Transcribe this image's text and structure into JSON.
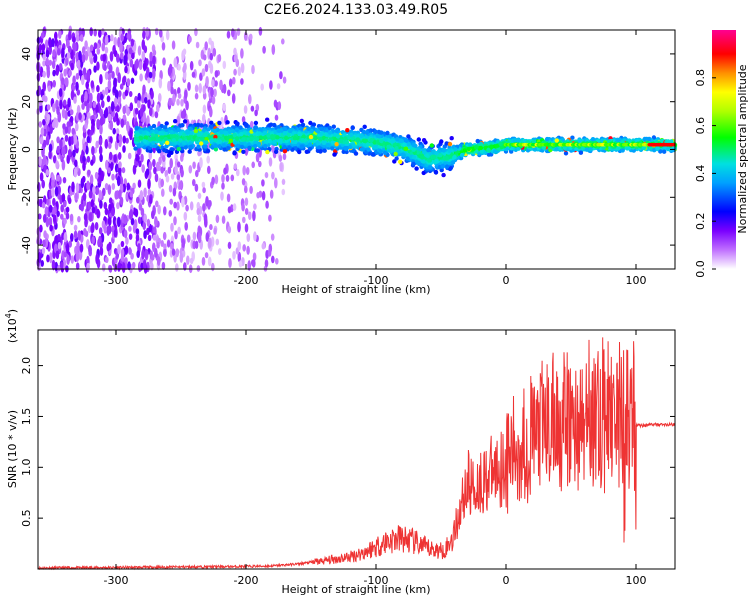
{
  "figure": {
    "title": "C2E6.2024.133.03.49.R05"
  },
  "chart_data": [
    {
      "type": "heatmap",
      "xlabel": "Height of straight line (km)",
      "ylabel": "Frequency (Hz)",
      "xlim": [
        -360,
        130
      ],
      "ylim": [
        -50,
        50
      ],
      "xticks": [
        -300,
        -200,
        -100,
        0,
        100
      ],
      "yticks": [
        -40,
        -20,
        0,
        20,
        40
      ],
      "colorbar": {
        "label": "Normalized spectral amplitude",
        "range": [
          0,
          1
        ],
        "ticks": [
          "0.0",
          "0.2",
          "0.4",
          "0.6",
          "0.8"
        ],
        "tick_values": [
          0.0,
          0.2,
          0.4,
          0.6,
          0.8
        ],
        "colormap": [
          "#ffffff",
          "#7a00ff",
          "#0000ff",
          "#00c8ff",
          "#00ff00",
          "#ffff00",
          "#ff8000",
          "#ff0000",
          "#ff0090"
        ]
      },
      "ridge": {
        "description_points_x": [
          -280,
          -250,
          -200,
          -150,
          -120,
          -100,
          -80,
          -60,
          -45,
          -30,
          -10,
          0,
          50,
          100,
          130
        ],
        "description_points_y": [
          5,
          5,
          5,
          5,
          4,
          3,
          1,
          -4,
          -3,
          0,
          1,
          2,
          2,
          2,
          2
        ]
      }
    },
    {
      "type": "line",
      "xlabel": "Height of straight line (km)",
      "ylabel": "SNR (10 * v/v)",
      "y_scale_label": "(x10",
      "y_scale_exp": "4",
      "y_scale_close": ")",
      "xlim": [
        -360,
        130
      ],
      "ylim": [
        0,
        2.35
      ],
      "xticks": [
        -300,
        -200,
        -100,
        0,
        100
      ],
      "yticks": [
        "0.5",
        "1.0",
        "1.5",
        "2.0"
      ],
      "ytick_values": [
        0.5,
        1.0,
        1.5,
        2.0
      ],
      "color": "#ee3333",
      "series": [
        {
          "x": [
            -360,
            -300,
            -250,
            -200,
            -180,
            -160,
            -140,
            -120,
            -110,
            -100,
            -90,
            -80,
            -70,
            -60,
            -50,
            -45,
            -40,
            -35,
            -30,
            -25,
            -20,
            -15,
            -10,
            -5,
            0,
            10,
            20,
            30,
            40,
            50,
            60,
            70,
            80,
            90,
            95,
            100,
            105,
            110,
            120,
            130
          ],
          "y": [
            0.01,
            0.015,
            0.02,
            0.025,
            0.03,
            0.05,
            0.08,
            0.12,
            0.16,
            0.22,
            0.28,
            0.3,
            0.26,
            0.2,
            0.18,
            0.22,
            0.35,
            0.6,
            0.85,
            0.8,
            0.85,
            0.9,
            0.95,
            1.0,
            1.05,
            1.2,
            1.3,
            1.4,
            1.45,
            1.42,
            1.4,
            1.45,
            1.5,
            1.55,
            1.45,
            1.42,
            1.41,
            1.42,
            1.42,
            1.42
          ]
        }
      ]
    }
  ]
}
